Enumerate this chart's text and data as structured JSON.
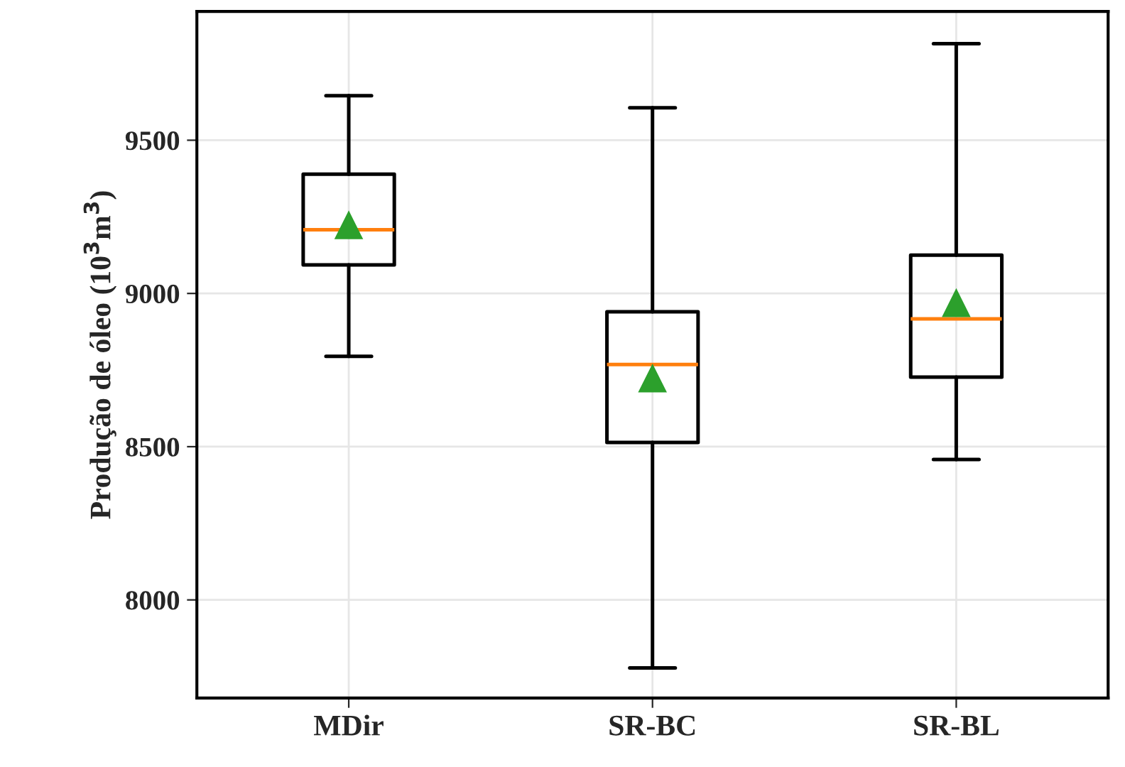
{
  "chart_data": {
    "type": "box",
    "ylabel": "Produção de óleo (10$^{3}$m$^{3}$)",
    "categories": [
      "MDir",
      "SR-BC",
      "SR-BL"
    ],
    "boxes": [
      {
        "low": 8795,
        "q1": 9093,
        "median": 9208,
        "q3": 9389,
        "high": 9645,
        "mean": 9222
      },
      {
        "low": 7778,
        "q1": 8514,
        "median": 8768,
        "q3": 8940,
        "high": 9606,
        "mean": 8722
      },
      {
        "low": 8458,
        "q1": 8727,
        "median": 8917,
        "q3": 9125,
        "high": 9815,
        "mean": 8968
      }
    ],
    "ylim": [
      7680,
      9920
    ],
    "yticks": [
      8000,
      8500,
      9000,
      9500
    ],
    "grid": true,
    "marker": "triangle"
  }
}
